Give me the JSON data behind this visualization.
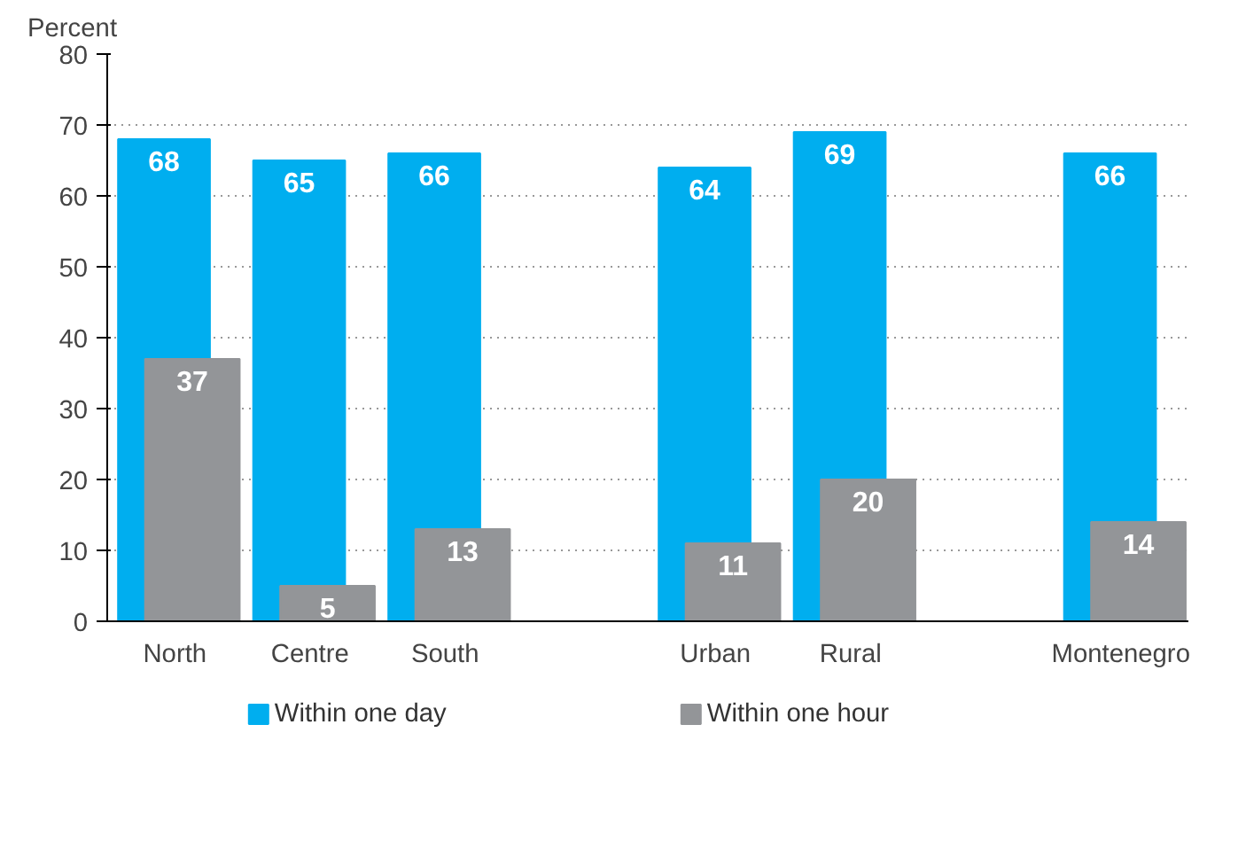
{
  "chart_data": {
    "type": "bar",
    "ylabel": "Percent",
    "categories": [
      "North",
      "Centre",
      "South",
      null,
      "Urban",
      "Rural",
      null,
      "Montenegro"
    ],
    "series": [
      {
        "name": "Within one day",
        "color": "#00aeef",
        "values": [
          68,
          65,
          66,
          null,
          64,
          69,
          null,
          66
        ]
      },
      {
        "name": "Within one hour",
        "color": "#939598",
        "values": [
          37,
          5,
          13,
          null,
          11,
          20,
          null,
          14
        ]
      }
    ],
    "ylim": [
      0,
      80
    ],
    "yticks": [
      0,
      10,
      20,
      30,
      40,
      50,
      60,
      70,
      80
    ],
    "grid": "y",
    "legend": "bottom",
    "data_labels": true
  }
}
